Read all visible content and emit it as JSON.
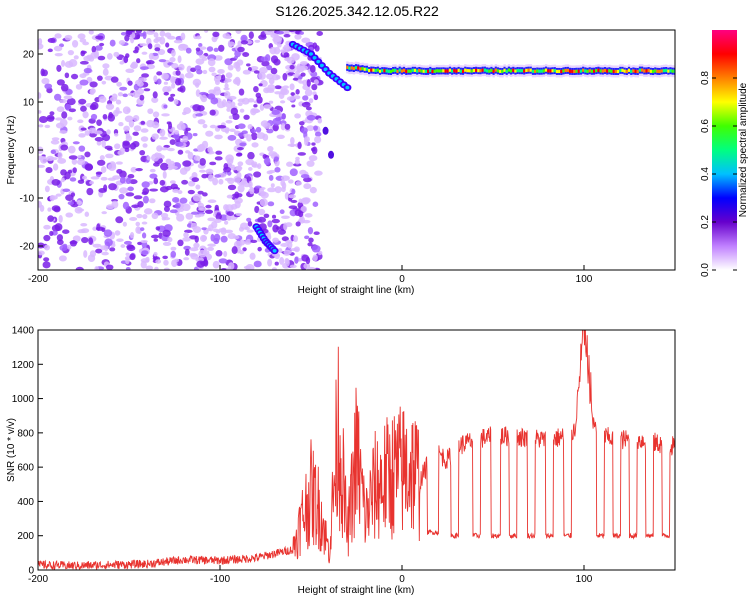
{
  "title": "S126.2025.342.12.05.R22",
  "chart_data": [
    {
      "type": "heatmap",
      "xlabel": "Height of straight line (km)",
      "ylabel": "Frequency (Hz)",
      "xlim": [
        -200,
        150
      ],
      "ylim": [
        -25,
        25
      ],
      "xticks": [
        -200,
        -100,
        0,
        100
      ],
      "yticks": [
        -20,
        -10,
        0,
        10,
        20
      ],
      "colorbar": {
        "label": "Normalized spectral amplitude",
        "range": [
          0,
          1
        ],
        "ticks": [
          "0.0",
          "0.2",
          "0.4",
          "0.6",
          "0.8"
        ],
        "colors": [
          "#ffffff",
          "#c080ff",
          "#6600cc",
          "#0000ff",
          "#00c0ff",
          "#00ff80",
          "#40ff00",
          "#ffff00",
          "#ff8000",
          "#ff0000",
          "#ff0080"
        ]
      },
      "features": {
        "noise_region_x": [
          -200,
          -45
        ],
        "tone_frequency_hz": 16.5,
        "tone_start_x": -30,
        "descending_track": [
          [
            -80,
            -16
          ],
          [
            -75,
            -19
          ],
          [
            -70,
            -21
          ]
        ],
        "rising_track": [
          [
            -60,
            22
          ],
          [
            -50,
            20
          ],
          [
            -40,
            16
          ],
          [
            -30,
            13
          ]
        ]
      }
    },
    {
      "type": "line",
      "xlabel": "Height of straight line (km)",
      "ylabel": "SNR (10 * v/v)",
      "xlim": [
        -200,
        150
      ],
      "ylim": [
        0,
        1400
      ],
      "xticks": [
        -200,
        -100,
        0,
        100
      ],
      "yticks": [
        0,
        200,
        400,
        600,
        800,
        1000,
        1200,
        1400
      ],
      "series": [
        {
          "color": "#e8332f",
          "x": [
            -200,
            -180,
            -160,
            -140,
            -120,
            -100,
            -80,
            -60,
            -55,
            -50,
            -45,
            -40,
            -35,
            -30,
            -25,
            -20,
            -15,
            -10,
            -5,
            0,
            5,
            10,
            15,
            20,
            25,
            30,
            40,
            50,
            60,
            70,
            80,
            90,
            95,
            100,
            105,
            110,
            120,
            130,
            140,
            150
          ],
          "values": [
            30,
            25,
            30,
            35,
            60,
            55,
            70,
            120,
            300,
            450,
            350,
            100,
            850,
            200,
            680,
            300,
            480,
            520,
            560,
            580,
            600,
            520,
            640,
            680,
            640,
            720,
            760,
            780,
            780,
            770,
            760,
            780,
            820,
            1400,
            850,
            780,
            760,
            760,
            740,
            720
          ]
        }
      ],
      "dropouts": [
        {
          "x": [
            14,
            20
          ],
          "low": 220
        },
        {
          "x": [
            27,
            31
          ],
          "low": 200
        },
        {
          "x": [
            39,
            43
          ],
          "low": 200
        },
        {
          "x": [
            49,
            54
          ],
          "low": 200
        },
        {
          "x": [
            59,
            63
          ],
          "low": 200
        },
        {
          "x": [
            69,
            73
          ],
          "low": 200
        },
        {
          "x": [
            79,
            83
          ],
          "low": 200
        },
        {
          "x": [
            89,
            93
          ],
          "low": 200
        },
        {
          "x": [
            107,
            111
          ],
          "low": 200
        },
        {
          "x": [
            116,
            120
          ],
          "low": 200
        },
        {
          "x": [
            125,
            129
          ],
          "low": 200
        },
        {
          "x": [
            134,
            138
          ],
          "low": 200
        },
        {
          "x": [
            143,
            147
          ],
          "low": 200
        }
      ]
    }
  ]
}
